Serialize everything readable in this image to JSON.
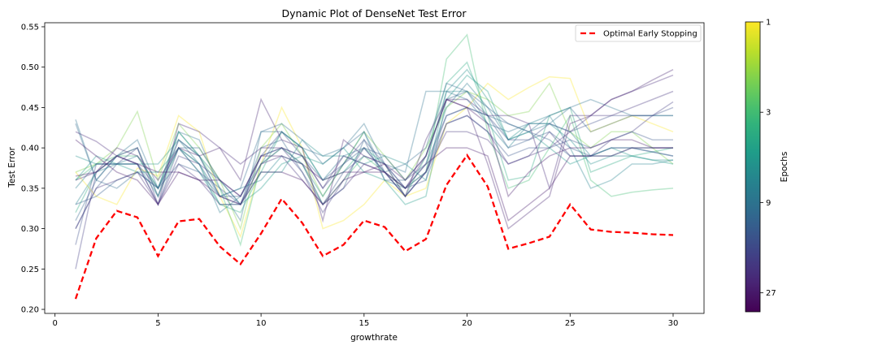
{
  "chart_data": {
    "type": "line",
    "title": "Dynamic Plot of DenseNet Test Error",
    "xlabel": "growthrate",
    "ylabel": "Test Error",
    "xlim": [
      -0.5,
      31.5
    ],
    "ylim": [
      0.195,
      0.555
    ],
    "x_ticks": [
      0,
      5,
      10,
      15,
      20,
      25,
      30
    ],
    "y_ticks": [
      0.2,
      0.25,
      0.3,
      0.35,
      0.4,
      0.45,
      0.5,
      0.55
    ],
    "x": [
      1,
      2,
      3,
      4,
      5,
      6,
      7,
      8,
      9,
      10,
      11,
      12,
      13,
      14,
      15,
      16,
      17,
      18,
      19,
      20,
      21,
      22,
      23,
      24,
      25,
      26,
      27,
      28,
      29,
      30
    ],
    "grid": false,
    "legend": {
      "position": "top-right",
      "entries": [
        {
          "label": "Optimal Early Stopping",
          "color": "#ff0000",
          "style": "dashed"
        }
      ]
    },
    "optimal_series": {
      "name": "Optimal Early Stopping",
      "color": "#ff0000",
      "values": [
        0.213,
        0.288,
        0.322,
        0.314,
        0.266,
        0.309,
        0.312,
        0.278,
        0.256,
        0.294,
        0.337,
        0.307,
        0.266,
        0.28,
        0.31,
        0.302,
        0.272,
        0.287,
        0.354,
        0.391,
        0.352,
        0.275,
        0.282,
        0.29,
        0.33,
        0.299,
        0.296,
        0.295,
        0.293,
        0.292
      ]
    },
    "epoch_series": [
      {
        "epoch": 1,
        "values": [
          0.37,
          0.34,
          0.33,
          0.375,
          0.365,
          0.44,
          0.42,
          0.34,
          0.29,
          0.38,
          0.45,
          0.4,
          0.3,
          0.31,
          0.33,
          0.36,
          0.34,
          0.35,
          0.43,
          0.45,
          0.48,
          0.46,
          0.475,
          0.488,
          0.486,
          0.42,
          0.43,
          0.44,
          0.43,
          0.42
        ]
      },
      {
        "epoch": 2,
        "values": [
          0.37,
          0.38,
          0.4,
          0.445,
          0.36,
          0.43,
          0.4,
          0.36,
          0.3,
          0.4,
          0.43,
          0.39,
          0.34,
          0.38,
          0.42,
          0.39,
          0.36,
          0.4,
          0.45,
          0.47,
          0.46,
          0.44,
          0.445,
          0.48,
          0.42,
          0.4,
          0.42,
          0.42,
          0.4,
          0.38
        ]
      },
      {
        "epoch": 3,
        "values": [
          0.36,
          0.38,
          0.39,
          0.39,
          0.35,
          0.42,
          0.39,
          0.35,
          0.28,
          0.38,
          0.4,
          0.38,
          0.33,
          0.36,
          0.39,
          0.37,
          0.35,
          0.37,
          0.51,
          0.54,
          0.42,
          0.35,
          0.36,
          0.4,
          0.44,
          0.36,
          0.34,
          0.345,
          0.348,
          0.35
        ]
      },
      {
        "epoch": 4,
        "values": [
          0.32,
          0.37,
          0.39,
          0.4,
          0.34,
          0.4,
          0.38,
          0.33,
          0.32,
          0.37,
          0.42,
          0.4,
          0.36,
          0.37,
          0.4,
          0.38,
          0.34,
          0.39,
          0.48,
          0.506,
          0.44,
          0.36,
          0.365,
          0.44,
          0.45,
          0.37,
          0.38,
          0.39,
          0.395,
          0.4
        ]
      },
      {
        "epoch": 5,
        "values": [
          0.36,
          0.39,
          0.38,
          0.37,
          0.37,
          0.4,
          0.37,
          0.33,
          0.33,
          0.35,
          0.38,
          0.39,
          0.38,
          0.4,
          0.37,
          0.36,
          0.33,
          0.34,
          0.46,
          0.49,
          0.47,
          0.41,
          0.42,
          0.4,
          0.38,
          0.39,
          0.4,
          0.39,
          0.385,
          0.38
        ]
      },
      {
        "epoch": 6,
        "values": [
          0.39,
          0.38,
          0.38,
          0.38,
          0.38,
          0.41,
          0.39,
          0.36,
          0.33,
          0.37,
          0.37,
          0.41,
          0.39,
          0.39,
          0.38,
          0.39,
          0.38,
          0.36,
          0.47,
          0.497,
          0.46,
          0.41,
          0.43,
          0.43,
          0.41,
          0.38,
          0.39,
          0.39,
          0.385,
          0.385
        ]
      },
      {
        "epoch": 7,
        "values": [
          0.33,
          0.37,
          0.38,
          0.38,
          0.34,
          0.42,
          0.39,
          0.34,
          0.35,
          0.36,
          0.39,
          0.38,
          0.34,
          0.38,
          0.42,
          0.36,
          0.35,
          0.38,
          0.47,
          0.47,
          0.43,
          0.4,
          0.43,
          0.44,
          0.4,
          0.35,
          0.36,
          0.38,
          0.38,
          0.385
        ]
      },
      {
        "epoch": 8,
        "values": [
          0.35,
          0.38,
          0.38,
          0.39,
          0.35,
          0.41,
          0.38,
          0.32,
          0.34,
          0.38,
          0.42,
          0.4,
          0.36,
          0.39,
          0.4,
          0.37,
          0.34,
          0.37,
          0.45,
          0.48,
          0.45,
          0.41,
          0.42,
          0.43,
          0.42,
          0.39,
          0.39,
          0.4,
          0.4,
          0.4
        ]
      },
      {
        "epoch": 9,
        "values": [
          0.435,
          0.36,
          0.39,
          0.41,
          0.35,
          0.42,
          0.41,
          0.35,
          0.31,
          0.42,
          0.42,
          0.4,
          0.39,
          0.4,
          0.43,
          0.38,
          0.37,
          0.47,
          0.47,
          0.46,
          0.43,
          0.42,
          0.43,
          0.43,
          0.45,
          0.46,
          0.45,
          0.44,
          0.44,
          0.44
        ]
      },
      {
        "epoch": 10,
        "values": [
          0.43,
          0.36,
          0.35,
          0.37,
          0.35,
          0.4,
          0.38,
          0.34,
          0.35,
          0.42,
          0.43,
          0.41,
          0.38,
          0.4,
          0.42,
          0.37,
          0.38,
          0.4,
          0.48,
          0.47,
          0.44,
          0.43,
          0.42,
          0.44,
          0.45,
          0.42,
          0.43,
          0.44,
          0.44,
          0.44
        ]
      },
      {
        "epoch": 11,
        "values": [
          0.31,
          0.36,
          0.39,
          0.38,
          0.35,
          0.4,
          0.4,
          0.36,
          0.33,
          0.4,
          0.41,
          0.37,
          0.33,
          0.35,
          0.41,
          0.36,
          0.36,
          0.39,
          0.46,
          0.47,
          0.45,
          0.43,
          0.42,
          0.41,
          0.39,
          0.39,
          0.4,
          0.4,
          0.395,
          0.39
        ]
      },
      {
        "epoch": 12,
        "values": [
          0.33,
          0.34,
          0.36,
          0.37,
          0.35,
          0.38,
          0.37,
          0.34,
          0.34,
          0.39,
          0.4,
          0.39,
          0.36,
          0.38,
          0.4,
          0.39,
          0.36,
          0.38,
          0.44,
          0.45,
          0.44,
          0.4,
          0.41,
          0.42,
          0.4,
          0.39,
          0.4,
          0.4,
          0.395,
          0.39
        ]
      },
      {
        "epoch": 13,
        "values": [
          0.3,
          0.35,
          0.38,
          0.38,
          0.33,
          0.4,
          0.37,
          0.35,
          0.33,
          0.38,
          0.4,
          0.38,
          0.33,
          0.37,
          0.39,
          0.38,
          0.35,
          0.36,
          0.43,
          0.44,
          0.42,
          0.39,
          0.4,
          0.4,
          0.41,
          0.4,
          0.41,
          0.42,
          0.41,
          0.41
        ]
      },
      {
        "epoch": 15,
        "values": [
          0.28,
          0.38,
          0.38,
          0.4,
          0.34,
          0.41,
          0.39,
          0.34,
          0.33,
          0.39,
          0.42,
          0.39,
          0.35,
          0.38,
          0.41,
          0.38,
          0.35,
          0.37,
          0.44,
          0.45,
          0.44,
          0.41,
          0.41,
          0.43,
          0.42,
          0.43,
          0.44,
          0.44,
          0.44,
          0.45
        ]
      },
      {
        "epoch": 18,
        "values": [
          0.25,
          0.37,
          0.39,
          0.4,
          0.33,
          0.39,
          0.38,
          0.36,
          0.34,
          0.39,
          0.4,
          0.37,
          0.32,
          0.36,
          0.4,
          0.37,
          0.34,
          0.37,
          0.43,
          0.44,
          0.42,
          0.38,
          0.39,
          0.42,
          0.39,
          0.39,
          0.41,
          0.42,
          0.44,
          0.457
        ]
      },
      {
        "epoch": 20,
        "values": [
          0.3,
          0.35,
          0.36,
          0.37,
          0.33,
          0.38,
          0.36,
          0.33,
          0.33,
          0.38,
          0.39,
          0.36,
          0.33,
          0.35,
          0.38,
          0.37,
          0.34,
          0.37,
          0.42,
          0.42,
          0.41,
          0.38,
          0.39,
          0.4,
          0.42,
          0.44,
          0.44,
          0.45,
          0.46,
          0.47
        ]
      },
      {
        "epoch": 22,
        "values": [
          0.42,
          0.408,
          0.39,
          0.38,
          0.33,
          0.43,
          0.42,
          0.4,
          0.38,
          0.4,
          0.4,
          0.39,
          0.35,
          0.39,
          0.38,
          0.37,
          0.35,
          0.39,
          0.46,
          0.46,
          0.44,
          0.44,
          0.43,
          0.35,
          0.44,
          0.44,
          0.46,
          0.47,
          0.48,
          0.49
        ]
      },
      {
        "epoch": 24,
        "values": [
          0.36,
          0.37,
          0.4,
          0.39,
          0.36,
          0.4,
          0.39,
          0.4,
          0.36,
          0.46,
          0.41,
          0.4,
          0.31,
          0.41,
          0.39,
          0.38,
          0.34,
          0.41,
          0.46,
          0.45,
          0.38,
          0.3,
          0.32,
          0.34,
          0.43,
          0.44,
          0.46,
          0.47,
          0.484,
          0.497
        ]
      },
      {
        "epoch": 26,
        "values": [
          0.365,
          0.37,
          0.39,
          0.38,
          0.37,
          0.37,
          0.36,
          0.36,
          0.34,
          0.39,
          0.39,
          0.38,
          0.36,
          0.37,
          0.37,
          0.38,
          0.36,
          0.39,
          0.46,
          0.45,
          0.43,
          0.34,
          0.37,
          0.39,
          0.4,
          0.4,
          0.41,
          0.41,
          0.4,
          0.4
        ]
      },
      {
        "epoch": 27,
        "values": [
          0.41,
          0.39,
          0.37,
          0.36,
          0.33,
          0.37,
          0.36,
          0.34,
          0.33,
          0.37,
          0.37,
          0.36,
          0.33,
          0.36,
          0.37,
          0.37,
          0.35,
          0.38,
          0.4,
          0.4,
          0.39,
          0.31,
          0.33,
          0.35,
          0.39,
          0.39,
          0.39,
          0.4,
          0.4,
          0.4
        ]
      }
    ],
    "colorbar": {
      "label": "Epochs",
      "ticks": [
        "1",
        "3",
        "9",
        "27"
      ],
      "scale": "log",
      "range": [
        1,
        34
      ],
      "colormap": [
        "#440154",
        "#482878",
        "#3e4989",
        "#31688e",
        "#26828e",
        "#1f9e89",
        "#35b779",
        "#6ece58",
        "#b5de2b",
        "#fde725"
      ]
    }
  }
}
